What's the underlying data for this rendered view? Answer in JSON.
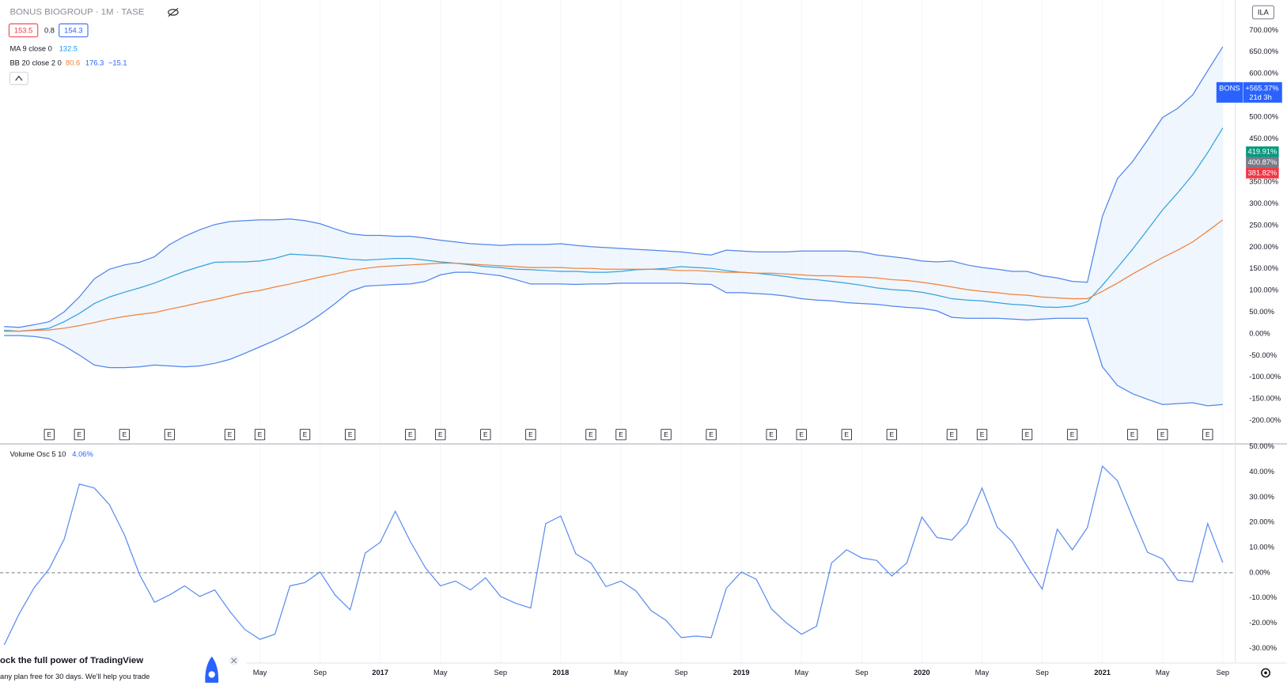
{
  "chart_data": [
    {
      "type": "line",
      "title": "BONUS BIOGROUP · 1M · TASE",
      "ohlc_boxes": [
        153.5,
        0.8,
        154.3
      ],
      "indicators": [
        {
          "name": "MA 9 close 0",
          "values": [
            132.5
          ]
        },
        {
          "name": "BB 20 close 2 0",
          "values": [
            80.6,
            176.3,
            {
              "value": -15.1,
              "label": "−15.1"
            }
          ]
        }
      ],
      "currency": "ILA",
      "symbol_label": {
        "symbol": "BONS",
        "change": {
          "value": 565.37,
          "label": "+565.37%"
        },
        "countdown": "21d 3h",
        "color": "#2962ff"
      },
      "price_labels": [
        {
          "value": 419.91,
          "label": "419.91%",
          "color": "#089981"
        },
        {
          "value": 400.87,
          "label": "400.87%",
          "color": "#787b86"
        },
        {
          "value": 381.82,
          "label": "381.82%",
          "color": "#f23645"
        }
      ],
      "earnings": {
        "label": "E",
        "at": [
          3,
          5,
          8,
          11,
          15,
          17,
          20,
          23,
          27,
          29,
          32,
          35,
          39,
          41,
          44,
          47,
          51,
          53,
          56,
          59,
          63,
          65,
          68,
          71,
          75,
          77,
          80
        ]
      },
      "categories": [
        null,
        null,
        null,
        null,
        null,
        null,
        null,
        null,
        null,
        null,
        null,
        null,
        null,
        null,
        null,
        null,
        null,
        "May",
        null,
        null,
        null,
        "Sep",
        null,
        null,
        null,
        "2017",
        null,
        null,
        null,
        "May",
        null,
        null,
        null,
        "Sep",
        null,
        null,
        null,
        "2018",
        null,
        null,
        null,
        "May",
        null,
        null,
        null,
        "Sep",
        null,
        null,
        null,
        "2019",
        null,
        null,
        null,
        "May",
        null,
        null,
        null,
        "Sep",
        null,
        null,
        null,
        "2020",
        null,
        null,
        null,
        "May",
        null,
        null,
        null,
        "Sep",
        null,
        null,
        null,
        "2021",
        null,
        null,
        null,
        "May",
        null,
        null,
        null,
        "Sep"
      ],
      "ylim": [
        -252,
        770
      ],
      "yticks": [
        {
          "value": -200,
          "label": "-200.00%"
        },
        {
          "value": -150,
          "label": "-150.00%"
        },
        {
          "value": -100,
          "label": "-100.00%"
        },
        {
          "value": -50,
          "label": "-50.00%"
        },
        {
          "value": 0,
          "label": "0.00%"
        },
        {
          "value": 50,
          "label": "50.00%"
        },
        {
          "value": 100,
          "label": "100.00%"
        },
        {
          "value": 150,
          "label": "150.00%"
        },
        {
          "value": 200,
          "label": "200.00%"
        },
        {
          "value": 250,
          "label": "250.00%"
        },
        {
          "value": 300,
          "label": "300.00%"
        },
        {
          "value": 350,
          "label": "350.00%"
        },
        {
          "value": 400,
          "label": "400.00%"
        },
        {
          "value": 450,
          "label": "450.00%"
        },
        {
          "value": 500,
          "label": "500.00%"
        },
        {
          "value": 550,
          "label": "550.00%"
        },
        {
          "value": 600,
          "label": "600.00%"
        },
        {
          "value": 650,
          "label": "650.00%"
        },
        {
          "value": 700,
          "label": "700.00%"
        }
      ],
      "grid": true,
      "band_fill": "#e6f0fb",
      "series": [
        {
          "color": "#4f86ec",
          "values": [
            17,
            15,
            21,
            28,
            51,
            85,
            127,
            149,
            159,
            165,
            178,
            206,
            225,
            240,
            252,
            259,
            261,
            263,
            263,
            265,
            261,
            254,
            242,
            231,
            227,
            227,
            225,
            225,
            221,
            216,
            212,
            208,
            206,
            204,
            206,
            206,
            206,
            208,
            204,
            201,
            199,
            197,
            195,
            193,
            191,
            189,
            185,
            182,
            193,
            191,
            189,
            189,
            189,
            191,
            191,
            191,
            191,
            189,
            182,
            178,
            174,
            168,
            166,
            168,
            159,
            153,
            149,
            144,
            144,
            134,
            129,
            121,
            119,
            271,
            358,
            397,
            447,
            499,
            520,
            551,
            607,
            662
          ]
        },
        {
          "color": "#33a3dc",
          "values": [
            8,
            6,
            9,
            13,
            28,
            47,
            70,
            85,
            96,
            106,
            117,
            131,
            144,
            155,
            165,
            166,
            166,
            168,
            174,
            184,
            182,
            180,
            176,
            172,
            170,
            172,
            174,
            174,
            170,
            166,
            163,
            159,
            155,
            153,
            149,
            148,
            146,
            144,
            144,
            142,
            142,
            144,
            148,
            149,
            151,
            155,
            153,
            151,
            146,
            142,
            140,
            136,
            132,
            127,
            125,
            121,
            117,
            112,
            106,
            102,
            100,
            96,
            89,
            81,
            78,
            76,
            72,
            68,
            66,
            62,
            61,
            64,
            74,
            112,
            153,
            195,
            240,
            286,
            325,
            367,
            418,
            475
          ]
        },
        {
          "color": "#4f86ec",
          "values": [
            -4,
            -4,
            -6,
            -11,
            -28,
            -49,
            -72,
            -78,
            -78,
            -76,
            -72,
            -74,
            -76,
            -74,
            -68,
            -59,
            -45,
            -30,
            -15,
            2,
            21,
            44,
            70,
            98,
            110,
            112,
            114,
            115,
            121,
            136,
            142,
            142,
            138,
            134,
            125,
            115,
            115,
            115,
            114,
            115,
            115,
            117,
            117,
            117,
            117,
            117,
            115,
            114,
            95,
            95,
            93,
            91,
            87,
            81,
            78,
            76,
            72,
            70,
            68,
            64,
            61,
            59,
            53,
            38,
            36,
            36,
            36,
            34,
            32,
            34,
            36,
            36,
            36,
            -76,
            -119,
            -138,
            -151,
            -163,
            -161,
            -159,
            -166,
            -163
          ]
        },
        {
          "color": "#f0813a",
          "values": [
            6,
            6,
            8,
            9,
            13,
            19,
            26,
            34,
            40,
            45,
            49,
            57,
            64,
            72,
            79,
            87,
            95,
            100,
            108,
            115,
            123,
            131,
            138,
            146,
            151,
            155,
            157,
            159,
            161,
            163,
            163,
            161,
            159,
            157,
            155,
            153,
            153,
            153,
            151,
            151,
            149,
            149,
            149,
            149,
            148,
            146,
            146,
            144,
            142,
            142,
            140,
            140,
            138,
            136,
            134,
            134,
            132,
            131,
            129,
            125,
            123,
            119,
            114,
            108,
            102,
            98,
            95,
            91,
            89,
            85,
            83,
            81,
            81,
            98,
            117,
            138,
            157,
            176,
            193,
            212,
            237,
            263
          ]
        }
      ]
    },
    {
      "type": "line",
      "title": "Volume Osc 5 10",
      "last_value": {
        "value": 4.06,
        "label": "4.06%"
      },
      "categories": [
        null,
        null,
        null,
        null,
        null,
        null,
        null,
        null,
        null,
        null,
        null,
        null,
        null,
        null,
        null,
        null,
        null,
        "May",
        null,
        null,
        null,
        "Sep",
        null,
        null,
        null,
        "2017",
        null,
        null,
        null,
        "May",
        null,
        null,
        null,
        "Sep",
        null,
        null,
        null,
        "2018",
        null,
        null,
        null,
        "May",
        null,
        null,
        null,
        "Sep",
        null,
        null,
        null,
        "2019",
        null,
        null,
        null,
        "May",
        null,
        null,
        null,
        "Sep",
        null,
        null,
        null,
        "2020",
        null,
        null,
        null,
        "May",
        null,
        null,
        null,
        "Sep",
        null,
        null,
        null,
        "2021",
        null,
        null,
        null,
        "May",
        null,
        null,
        null,
        "Sep"
      ],
      "ylim": [
        -35.8,
        51.1
      ],
      "yticks": [
        {
          "value": -30,
          "label": "-30.00%"
        },
        {
          "value": -20,
          "label": "-20.00%"
        },
        {
          "value": -10,
          "label": "-10.00%"
        },
        {
          "value": 0,
          "label": "0.00%"
        },
        {
          "value": 10,
          "label": "10.00%"
        },
        {
          "value": 20,
          "label": "20.00%"
        },
        {
          "value": 30,
          "label": "30.00%"
        },
        {
          "value": 40,
          "label": "40.00%"
        },
        {
          "value": 50,
          "label": "50.00%"
        }
      ],
      "grid": true,
      "zero_line": true,
      "series": [
        {
          "color": "#5b8def",
          "values": [
            -28.7,
            -16.3,
            -5.9,
            1.6,
            13.4,
            35.2,
            33.6,
            27.0,
            15.0,
            -0.7,
            -11.7,
            -8.8,
            -5.2,
            -9.4,
            -6.8,
            -15.3,
            -22.5,
            -26.4,
            -24.4,
            -5.2,
            -3.9,
            0.3,
            -8.8,
            -14.7,
            7.8,
            12.1,
            24.4,
            12.4,
            2.0,
            -5.2,
            -3.3,
            -6.8,
            -2.0,
            -9.4,
            -12.1,
            -14.0,
            19.5,
            22.5,
            7.5,
            3.9,
            -5.5,
            -3.3,
            -7.2,
            -15.0,
            -18.9,
            -25.7,
            -25.1,
            -25.7,
            -6.2,
            0.3,
            -2.6,
            -14.3,
            -19.9,
            -24.4,
            -21.2,
            3.9,
            9.1,
            5.9,
            4.9,
            -1.3,
            3.9,
            22.1,
            14.0,
            13.0,
            19.5,
            33.6,
            18.2,
            12.4,
            2.6,
            -6.5,
            17.3,
            9.1,
            17.9,
            42.3,
            36.5,
            22.1,
            8.1,
            5.5,
            -2.9,
            -3.6,
            19.5,
            4.06
          ]
        }
      ]
    }
  ],
  "promo": {
    "heading": "ock the full power of TradingView",
    "text": "any plan free for 30 days. We'll help you trade"
  }
}
